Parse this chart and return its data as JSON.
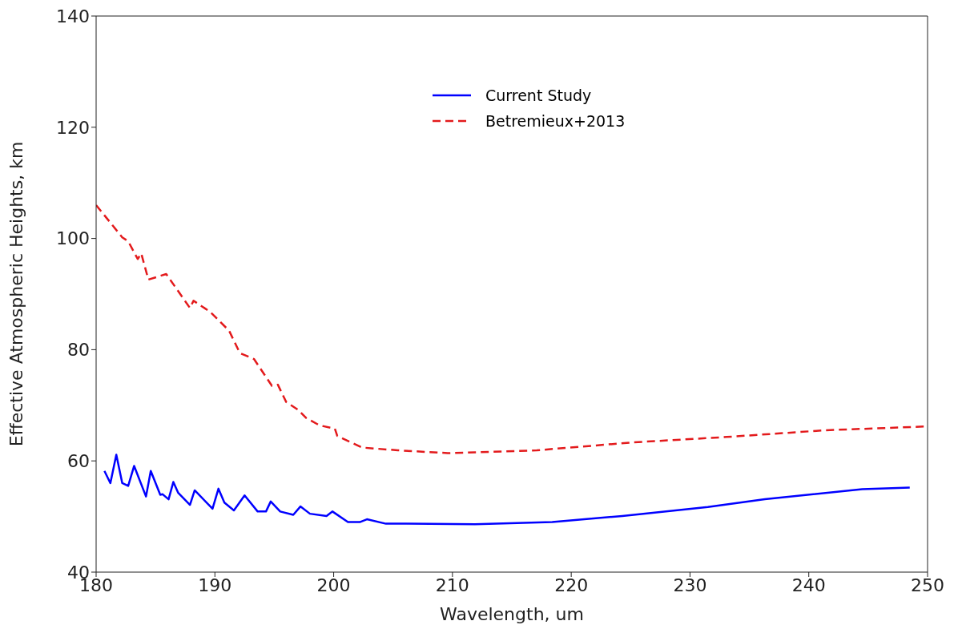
{
  "chart_data": {
    "type": "line",
    "xlabel": "Wavelength, um",
    "ylabel": "Effective Atmospheric Heights, km",
    "xlim": [
      180,
      250
    ],
    "ylim": [
      40,
      140
    ],
    "xticks": [
      180,
      190,
      200,
      210,
      220,
      230,
      240,
      250
    ],
    "yticks": [
      40,
      60,
      80,
      100,
      120,
      140
    ],
    "grid": false,
    "legend": "top",
    "marker": "none",
    "series": [
      {
        "name": "Current Study",
        "color": "#0000ff",
        "line_style": "solid",
        "x": [
          180.7,
          181.2,
          181.7,
          182.2,
          182.7,
          183.2,
          184.2,
          184.6,
          185.4,
          185.6,
          186.1,
          186.5,
          186.9,
          187.9,
          188.3,
          189.8,
          190.3,
          190.8,
          191.6,
          192.5,
          193.6,
          194.3,
          194.7,
          195.5,
          196.6,
          197.2,
          198.0,
          199.4,
          199.9,
          201.2,
          202.2,
          202.8,
          204.4,
          206.2,
          211.9,
          218.4,
          224.3,
          231.5,
          236.3,
          244.5,
          248.5
        ],
        "values": [
          58.2,
          56.0,
          61.1,
          56.0,
          55.5,
          59.1,
          53.6,
          58.2,
          53.9,
          54.0,
          53.1,
          56.2,
          54.3,
          52.1,
          54.7,
          51.4,
          55.0,
          52.5,
          51.1,
          53.8,
          50.9,
          50.9,
          52.7,
          50.9,
          50.3,
          51.8,
          50.5,
          50.1,
          50.9,
          49.0,
          49.0,
          49.5,
          48.7,
          48.7,
          48.6,
          49.0,
          50.1,
          51.7,
          53.1,
          54.9,
          55.2
        ]
      },
      {
        "name": "Betremieux+2013",
        "color": "#e31a1c",
        "line_style": "dashed",
        "x": [
          180,
          182.2,
          182.7,
          183.5,
          183.8,
          184.4,
          185.9,
          187.9,
          188.2,
          189.6,
          191.2,
          192.1,
          193.3,
          194.8,
          195.3,
          196.0,
          197.0,
          197.7,
          198.8,
          200.1,
          200.3,
          202.4,
          205.4,
          209.6,
          217.1,
          225,
          233.1,
          241.3,
          250
        ],
        "values": [
          106.0,
          100.2,
          99.5,
          96.3,
          97.3,
          92.6,
          93.6,
          87.5,
          88.8,
          86.8,
          83.4,
          79.4,
          78.3,
          73.5,
          73.7,
          70.6,
          69.2,
          67.7,
          66.4,
          65.8,
          64.5,
          62.4,
          61.9,
          61.4,
          61.9,
          63.3,
          64.3,
          65.5,
          66.2
        ]
      }
    ]
  }
}
